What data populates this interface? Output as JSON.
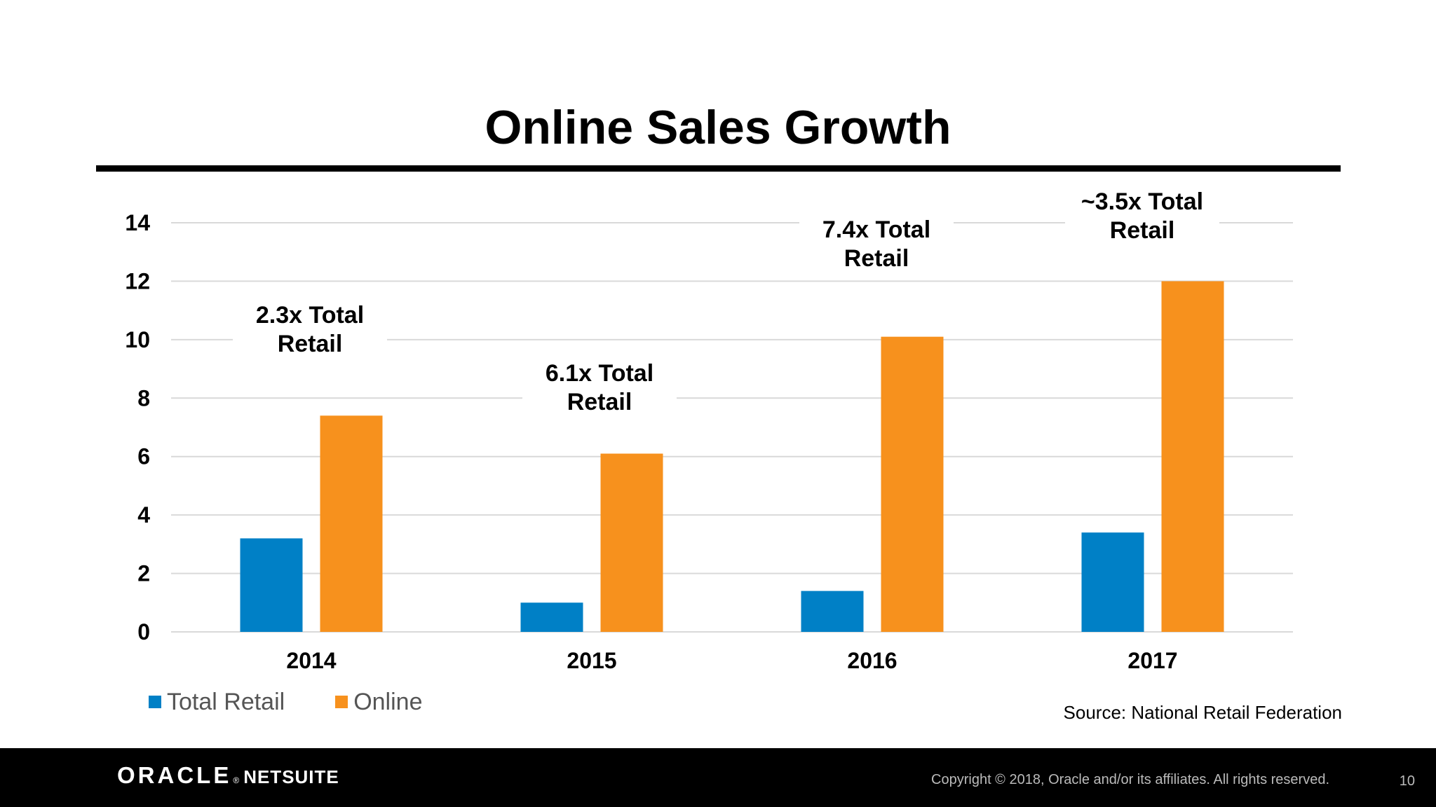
{
  "title": "Online Sales Growth",
  "chart_data": {
    "type": "bar",
    "categories": [
      "2014",
      "2015",
      "2016",
      "2017"
    ],
    "series": [
      {
        "name": "Total Retail",
        "color": "#0080c6",
        "values": [
          3.2,
          1.0,
          1.4,
          3.4
        ]
      },
      {
        "name": "Online",
        "color": "#f7911d",
        "values": [
          7.4,
          6.1,
          10.1,
          12.0
        ]
      }
    ],
    "yticks": [
      "0",
      "2",
      "4",
      "6",
      "8",
      "10",
      "12",
      "14"
    ],
    "ylim": [
      0,
      14
    ],
    "grid": true,
    "legend_position": "bottom-left",
    "annotations": [
      {
        "category": "2014",
        "lines": [
          "2.3x Total",
          "Retail"
        ]
      },
      {
        "category": "2015",
        "lines": [
          "6.1x Total",
          "Retail"
        ]
      },
      {
        "category": "2016",
        "lines": [
          "7.4x Total",
          "Retail"
        ]
      },
      {
        "category": "2017",
        "lines": [
          "~3.5x Total",
          "Retail"
        ]
      }
    ]
  },
  "source": "Source: National Retail Federation",
  "footer": {
    "logo_oracle": "ORACLE",
    "logo_reg": "®",
    "logo_netsuite": "NETSUITE",
    "copyright": "Copyright © 2018, Oracle and/or its affiliates. All rights reserved.",
    "page_number": "10"
  }
}
